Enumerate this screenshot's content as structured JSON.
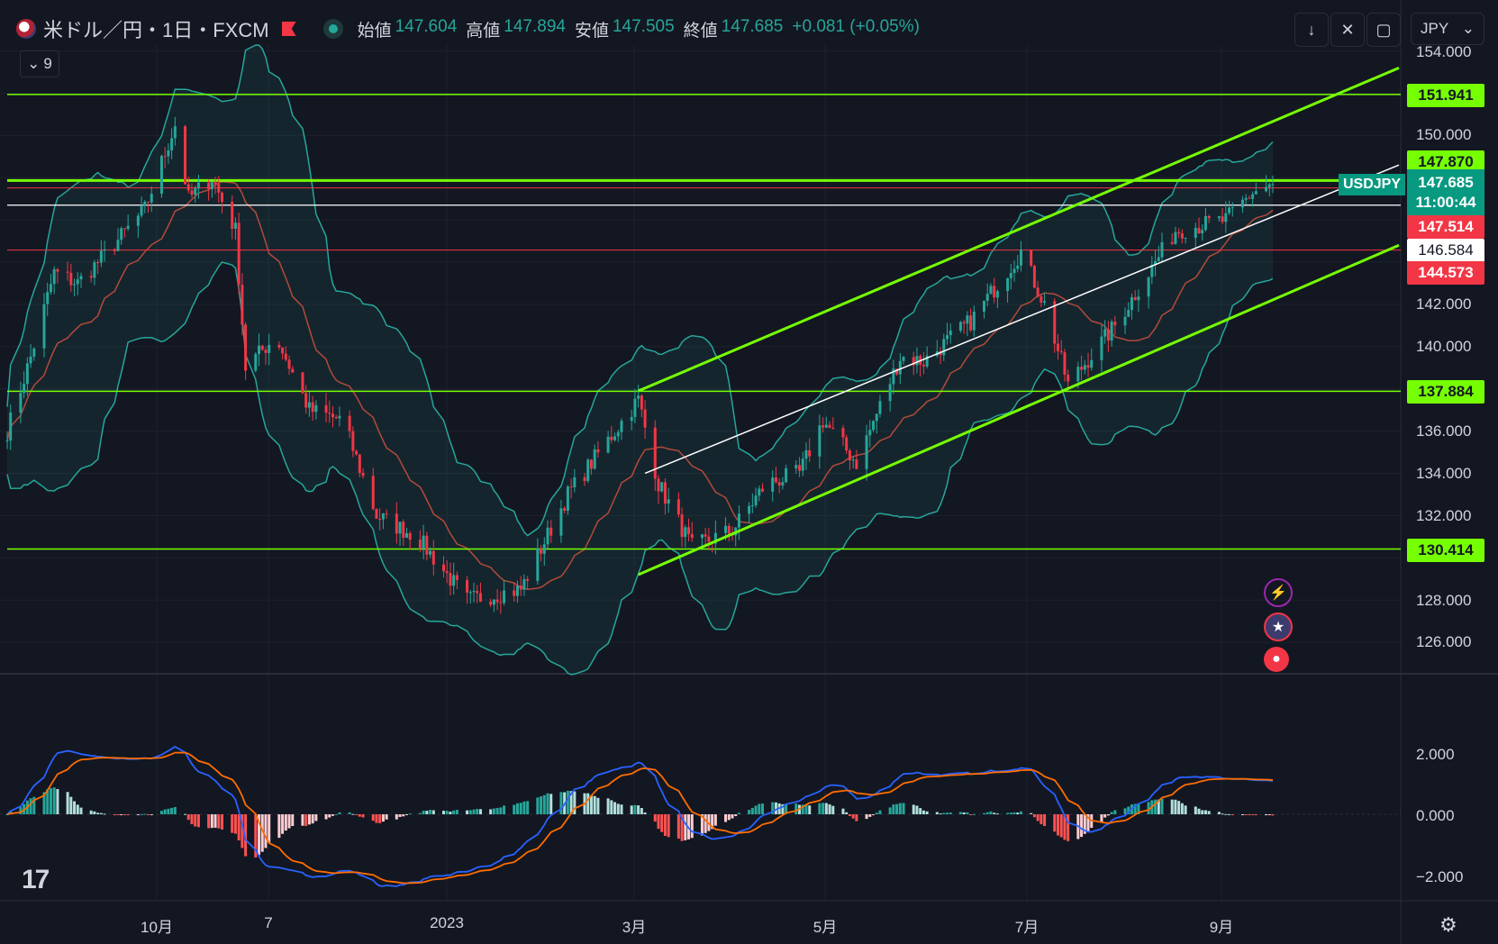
{
  "header": {
    "symbol": "米ドル／円・1日・FXCM",
    "open_label": "始値",
    "open": "147.604",
    "high_label": "高値",
    "high": "147.894",
    "low_label": "安値",
    "low": "147.505",
    "close_label": "終値",
    "close": "147.685",
    "change": "+0.081 (+0.05%)",
    "indicator_count": "9"
  },
  "toolbar": {
    "currency": "JPY"
  },
  "price_tags": {
    "res1": "151.941",
    "res2": "147.870",
    "symbol": "USDJPY",
    "last": "147.685",
    "countdown": "11:00:44",
    "red1": "147.514",
    "white": "146.584",
    "red2": "144.573",
    "sup1": "137.884",
    "sup2": "130.414"
  },
  "colors": {
    "up": "#26a69a",
    "down": "#f23645",
    "bg": "#131722",
    "channel": "#76ff03",
    "level": "#76ff03"
  },
  "chart_data": {
    "type": "candlestick",
    "symbol": "USDJPY",
    "timeframe": "1D",
    "y_axis_labels": [
      "154.000",
      "150.000",
      "142.000",
      "140.000",
      "136.000",
      "134.000",
      "132.000",
      "128.000",
      "126.000"
    ],
    "x_axis_labels": [
      "10月",
      "7",
      "2023",
      "3月",
      "5月",
      "7月",
      "9月"
    ],
    "osc_axis_labels": [
      "2.000",
      "0.000",
      "−2.000"
    ],
    "ylim": [
      124.5,
      154.6
    ],
    "horizontal_levels": [
      151.941,
      147.87,
      137.884,
      130.414
    ],
    "red_levels": [
      147.514,
      144.573
    ],
    "white_level": 146.584,
    "price_path": [
      {
        "d": "2022-09-01",
        "p": 136.0
      },
      {
        "d": "2022-09-08",
        "p": 139.5
      },
      {
        "d": "2022-09-15",
        "p": 143.5
      },
      {
        "d": "2022-09-22",
        "p": 143.0
      },
      {
        "d": "2022-10-01",
        "p": 144.5
      },
      {
        "d": "2022-10-12",
        "p": 146.5
      },
      {
        "d": "2022-10-21",
        "p": 150.5
      },
      {
        "d": "2022-10-25",
        "p": 147.0
      },
      {
        "d": "2022-11-01",
        "p": 148.0
      },
      {
        "d": "2022-11-08",
        "p": 145.5
      },
      {
        "d": "2022-11-11",
        "p": 139.0
      },
      {
        "d": "2022-11-20",
        "p": 140.5
      },
      {
        "d": "2022-11-30",
        "p": 137.0
      },
      {
        "d": "2022-12-10",
        "p": 136.5
      },
      {
        "d": "2022-12-20",
        "p": 132.0
      },
      {
        "d": "2023-01-01",
        "p": 131.0
      },
      {
        "d": "2023-01-16",
        "p": 128.0
      },
      {
        "d": "2023-02-01",
        "p": 128.5
      },
      {
        "d": "2023-02-15",
        "p": 133.0
      },
      {
        "d": "2023-03-01",
        "p": 136.0
      },
      {
        "d": "2023-03-08",
        "p": 137.5
      },
      {
        "d": "2023-03-14",
        "p": 133.5
      },
      {
        "d": "2023-03-24",
        "p": 130.5
      },
      {
        "d": "2023-04-05",
        "p": 131.3
      },
      {
        "d": "2023-04-15",
        "p": 133.5
      },
      {
        "d": "2023-04-25",
        "p": 134.0
      },
      {
        "d": "2023-05-02",
        "p": 136.5
      },
      {
        "d": "2023-05-12",
        "p": 134.5
      },
      {
        "d": "2023-05-25",
        "p": 139.5
      },
      {
        "d": "2023-06-01",
        "p": 139.3
      },
      {
        "d": "2023-06-15",
        "p": 141.2
      },
      {
        "d": "2023-06-30",
        "p": 144.5
      },
      {
        "d": "2023-07-07",
        "p": 142.0
      },
      {
        "d": "2023-07-14",
        "p": 138.2
      },
      {
        "d": "2023-07-28",
        "p": 141.0
      },
      {
        "d": "2023-08-03",
        "p": 142.5
      },
      {
        "d": "2023-08-15",
        "p": 145.5
      },
      {
        "d": "2023-08-30",
        "p": 146.0
      },
      {
        "d": "2023-09-07",
        "p": 147.3
      },
      {
        "d": "2023-09-13",
        "p": 147.69
      }
    ]
  }
}
